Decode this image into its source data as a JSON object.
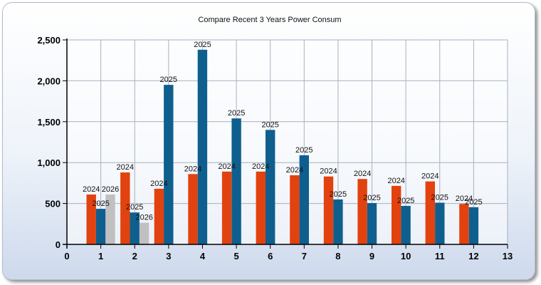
{
  "chart_data": {
    "type": "bar",
    "title": "Compare Recent 3 Years Power Consum",
    "xlabel": "",
    "ylabel": "",
    "xlim": [
      0,
      13
    ],
    "ylim": [
      0,
      2500
    ],
    "x_ticks": [
      0,
      1,
      2,
      3,
      4,
      5,
      6,
      7,
      8,
      9,
      10,
      11,
      12,
      13
    ],
    "y_ticks": [
      0,
      500,
      1000,
      1500,
      2000,
      2500
    ],
    "y_tick_labels": [
      "0",
      "500",
      "1,000",
      "1,500",
      "2,000",
      "2,500"
    ],
    "grid": true,
    "legend": "none",
    "series": [
      {
        "label": "2024",
        "color": "#e2420f",
        "x": [
          1,
          2,
          3,
          4,
          5,
          6,
          7,
          8,
          9,
          10,
          11,
          12
        ],
        "values": [
          610,
          880,
          680,
          860,
          890,
          890,
          845,
          830,
          800,
          715,
          770,
          495
        ]
      },
      {
        "label": "2025",
        "color": "#0f5f8e",
        "x": [
          1,
          2,
          3,
          4,
          5,
          6,
          7,
          8,
          9,
          10,
          11,
          12
        ],
        "values": [
          435,
          390,
          1950,
          2380,
          1540,
          1400,
          1090,
          550,
          505,
          470,
          510,
          455
        ]
      },
      {
        "label": "2026",
        "color": "#c0c0c0",
        "x": [
          1,
          2
        ],
        "values": [
          610,
          265
        ]
      }
    ]
  }
}
